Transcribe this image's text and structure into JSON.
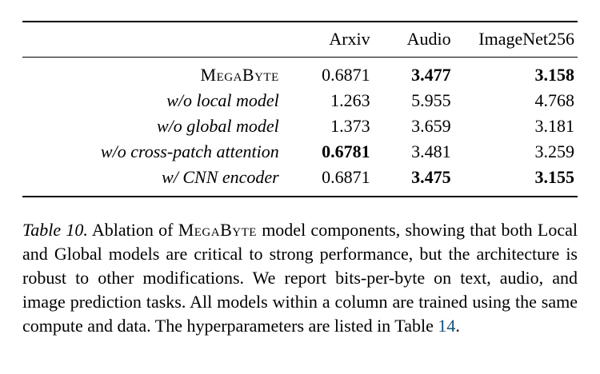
{
  "table": {
    "columns": [
      "Arxiv",
      "Audio",
      "ImageNet256"
    ],
    "rows": [
      {
        "label": "MegaByte",
        "values": [
          "0.6871",
          "3.477",
          "3.158"
        ]
      },
      {
        "label": "w/o local model",
        "values": [
          "1.263",
          "5.955",
          "4.768"
        ]
      },
      {
        "label": "w/o global model",
        "values": [
          "1.373",
          "3.659",
          "3.181"
        ]
      },
      {
        "label": "w/o cross-patch attention",
        "values": [
          "0.6781",
          "3.481",
          "3.259"
        ]
      },
      {
        "label": "w/ CNN encoder",
        "values": [
          "0.6871",
          "3.475",
          "3.155"
        ]
      }
    ]
  },
  "caption": {
    "label": "Table 10.",
    "text_before_name": " Ablation of ",
    "model_name": "MegaByte",
    "text_after_name": " model components, showing that both Local and Global models are critical to strong performance, but the architecture is robust to other modifications. We report bits-per-byte on text, audio, and image prediction tasks. All models within a column are trained using the same compute and data. The hyperparameters are listed in Table ",
    "table_ref": "14",
    "text_end": ".",
    "link_color": "#17527a"
  }
}
